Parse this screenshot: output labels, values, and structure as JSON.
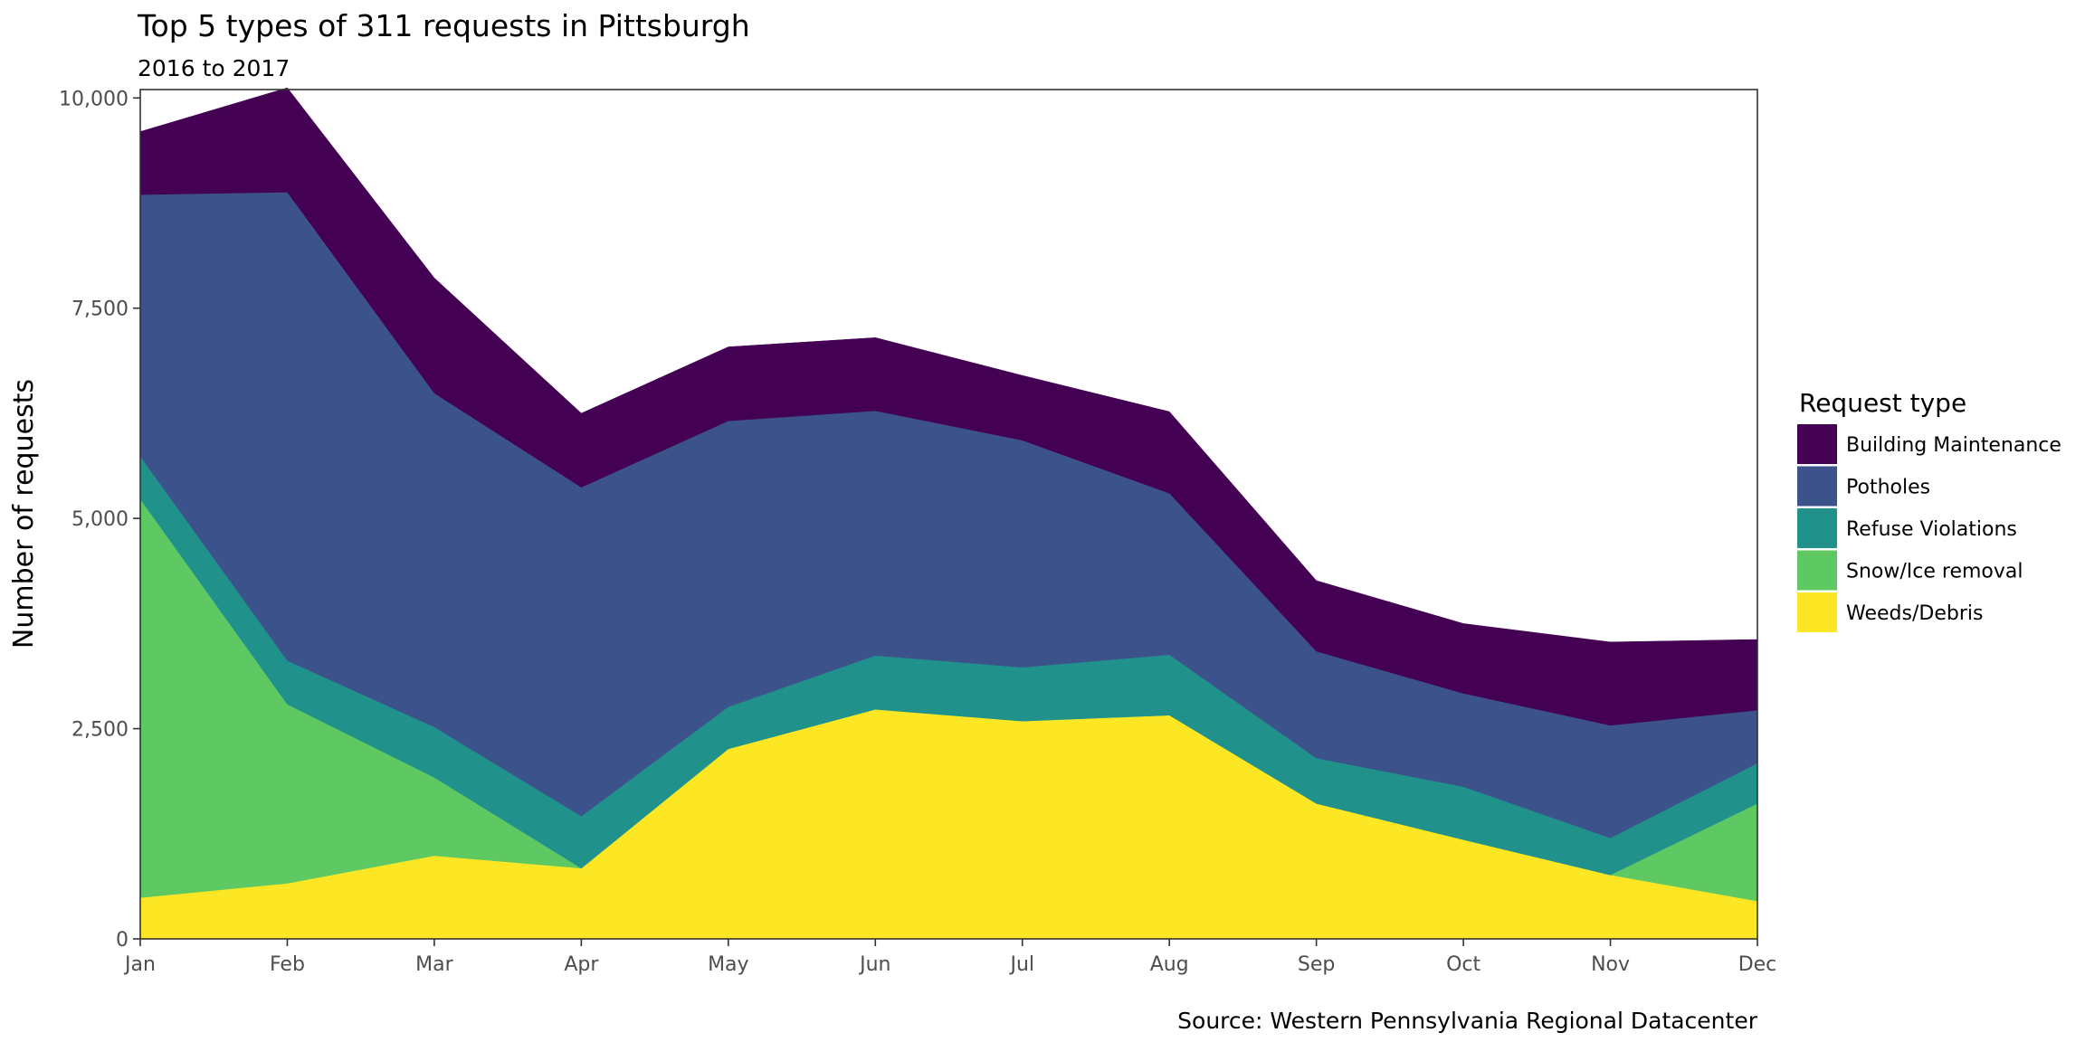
{
  "chart_data": {
    "type": "area",
    "stacked": true,
    "title": "Top 5 types of 311 requests in Pittsburgh",
    "subtitle": "2016 to 2017",
    "xlabel": "",
    "ylabel": "Number of requests",
    "caption": "Source: Western Pennsylvania Regional Datacenter",
    "categories": [
      "Jan",
      "Feb",
      "Mar",
      "Apr",
      "May",
      "Jun",
      "Jul",
      "Aug",
      "Sep",
      "Oct",
      "Nov",
      "Dec"
    ],
    "ylim": [
      0,
      10100
    ],
    "yticks": [
      0,
      2500,
      5000,
      7500,
      10000
    ],
    "ytick_labels": [
      "0",
      "2,500",
      "5,000",
      "7,500",
      "10,000"
    ],
    "grid": false,
    "legend": {
      "title": "Request type",
      "position": "right"
    },
    "series": [
      {
        "name": "Weeds/Debris",
        "color": "#fde725",
        "values": [
          490,
          660,
          990,
          840,
          2260,
          2730,
          2590,
          2660,
          1610,
          1180,
          760,
          450
        ]
      },
      {
        "name": "Snow/Ice removal",
        "color": "#5ec962",
        "values": [
          4740,
          2130,
          930,
          0,
          0,
          0,
          0,
          0,
          0,
          0,
          0,
          1160
        ]
      },
      {
        "name": "Refuse Violations",
        "color": "#21918c",
        "values": [
          510,
          520,
          600,
          620,
          500,
          640,
          640,
          720,
          540,
          630,
          440,
          480
        ]
      },
      {
        "name": "Potholes",
        "color": "#3b528b",
        "values": [
          3110,
          5570,
          3970,
          3910,
          3400,
          2910,
          2700,
          1920,
          1270,
          1110,
          1340,
          630
        ]
      },
      {
        "name": "Building Maintenance",
        "color": "#440154",
        "values": [
          750,
          1240,
          1370,
          880,
          880,
          870,
          770,
          970,
          840,
          830,
          990,
          840
        ]
      }
    ],
    "legend_order": [
      "Building Maintenance",
      "Potholes",
      "Refuse Violations",
      "Snow/Ice removal",
      "Weeds/Debris"
    ]
  }
}
